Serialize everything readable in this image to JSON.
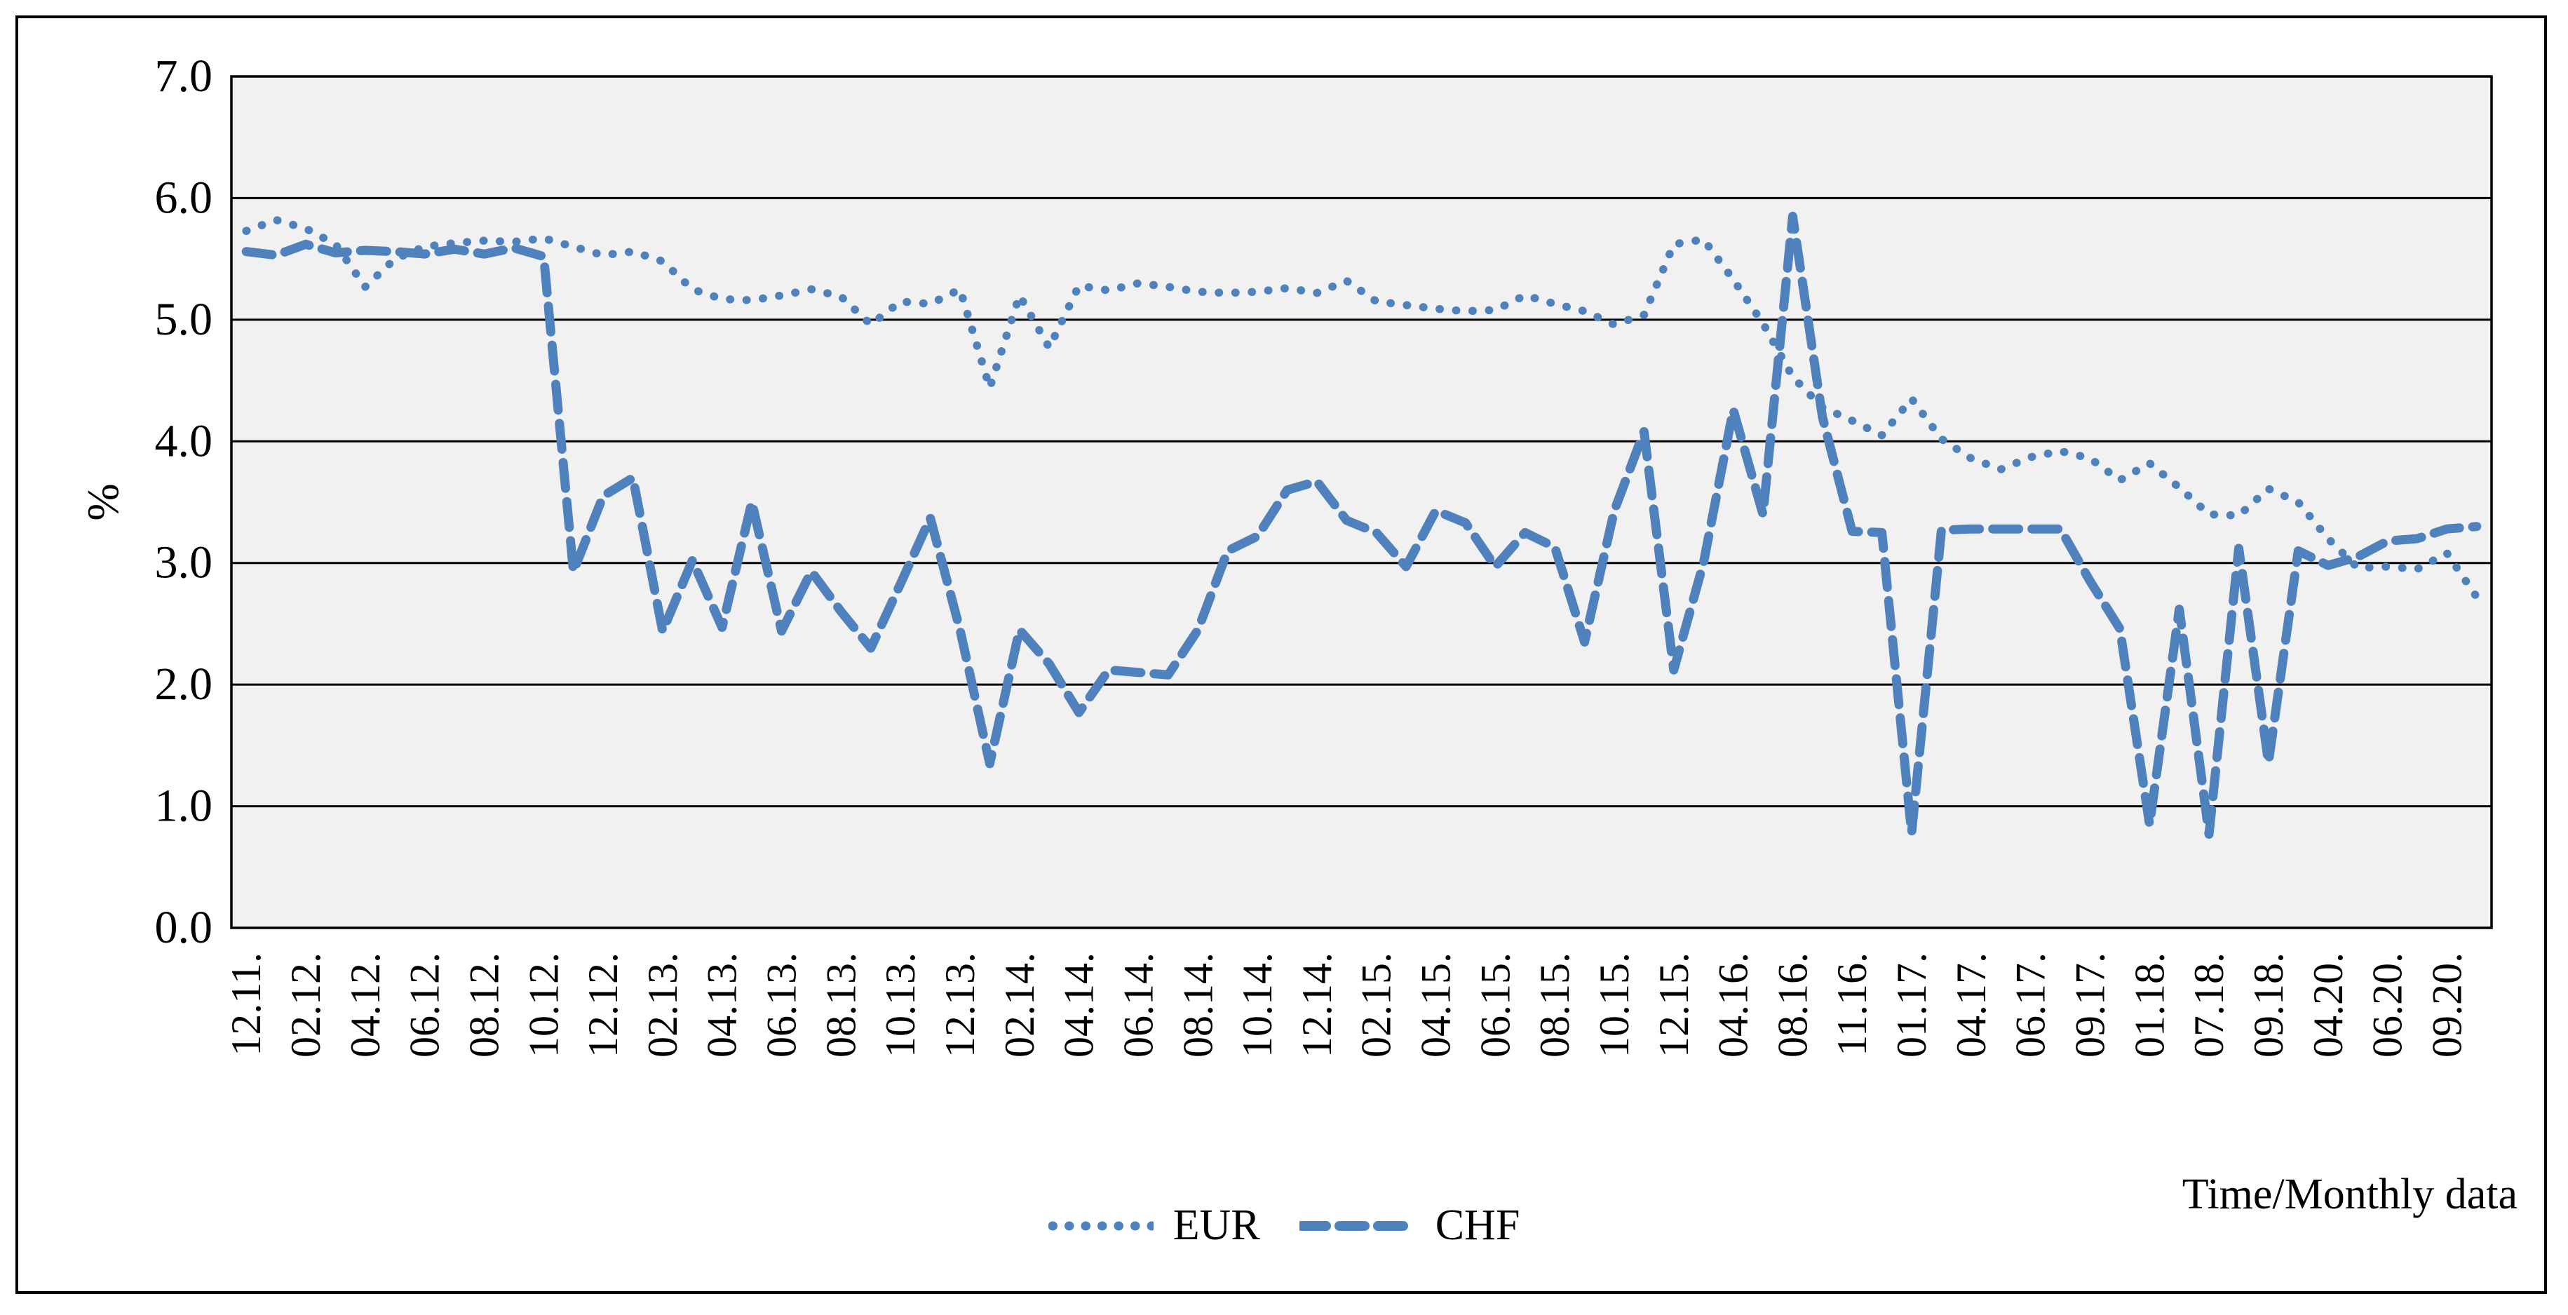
{
  "figure": {
    "y_axis_title": "%",
    "x_axis_title": "Time/Monthly data"
  },
  "legend": {
    "eur_label": "EUR",
    "chf_label": "CHF"
  },
  "chart_data": {
    "type": "line",
    "title": "",
    "xlabel": "Time/Monthly data",
    "ylabel": "%",
    "ylim": [
      0.0,
      7.0
    ],
    "ytick_step": 1.0,
    "ytick_labels": [
      "0.0",
      "1.0",
      "2.0",
      "3.0",
      "4.0",
      "5.0",
      "6.0",
      "7.0"
    ],
    "grid": "horizontal-black",
    "plot_bg": "#F1F1F1",
    "line_color": "#4F81BD",
    "legend_position": "bottom",
    "categories": [
      "12.11.",
      "02.12.",
      "04.12.",
      "06.12.",
      "08.12.",
      "10.12.",
      "12.12.",
      "02.13.",
      "04.13.",
      "06.13.",
      "08.13.",
      "10.13.",
      "12.13.",
      "02.14.",
      "04.14.",
      "06.14.",
      "08.14.",
      "10.14.",
      "12.14.",
      "02.15.",
      "04.15.",
      "06.15.",
      "08.15.",
      "10.15.",
      "12.15.",
      "04.16.",
      "08.16.",
      "11.16.",
      "01.17.",
      "04.17.",
      "06.17.",
      "09.17.",
      "01.18.",
      "07.18.",
      "09.18.",
      "04.20.",
      "06.20.",
      "09.20."
    ],
    "points_per_label": 2,
    "series": [
      {
        "name": "EUR",
        "dash": "dotted",
        "values": [
          5.73,
          5.82,
          5.75,
          5.62,
          5.27,
          5.5,
          5.6,
          5.63,
          5.65,
          5.64,
          5.67,
          5.6,
          5.53,
          5.56,
          5.48,
          5.25,
          5.17,
          5.16,
          5.2,
          5.25,
          5.19,
          4.96,
          5.15,
          5.13,
          5.25,
          4.44,
          5.2,
          4.77,
          5.28,
          5.24,
          5.3,
          5.27,
          5.23,
          5.22,
          5.23,
          5.26,
          5.22,
          5.32,
          5.15,
          5.12,
          5.09,
          5.07,
          5.08,
          5.2,
          5.13,
          5.07,
          4.96,
          5.04,
          5.62,
          5.66,
          5.33,
          4.97,
          4.53,
          4.28,
          4.17,
          4.05,
          4.35,
          4.02,
          3.86,
          3.77,
          3.87,
          3.92,
          3.86,
          3.68,
          3.82,
          3.62,
          3.4,
          3.39,
          3.61,
          3.5,
          3.2,
          2.96,
          2.97,
          2.95,
          3.08,
          2.72
        ]
      },
      {
        "name": "CHF",
        "dash": "dashed",
        "values": [
          5.56,
          5.53,
          5.62,
          5.55,
          5.57,
          5.56,
          5.54,
          5.58,
          5.54,
          5.59,
          5.52,
          2.93,
          3.55,
          3.7,
          2.44,
          3.02,
          2.47,
          3.5,
          2.44,
          2.93,
          2.6,
          2.3,
          2.83,
          3.37,
          2.45,
          1.35,
          2.45,
          2.17,
          1.77,
          2.12,
          2.1,
          2.08,
          2.45,
          3.1,
          3.22,
          3.6,
          3.67,
          3.35,
          3.25,
          2.97,
          3.43,
          3.33,
          2.97,
          3.25,
          3.13,
          2.35,
          3.43,
          4.08,
          2.12,
          3.0,
          4.26,
          3.4,
          5.85,
          4.2,
          3.26,
          3.25,
          0.78,
          3.27,
          3.28,
          3.28,
          3.28,
          3.28,
          2.85,
          2.46,
          0.85,
          2.62,
          0.77,
          3.12,
          1.36,
          3.1,
          2.98,
          3.05,
          3.18,
          3.2,
          3.28,
          3.3
        ]
      }
    ]
  }
}
